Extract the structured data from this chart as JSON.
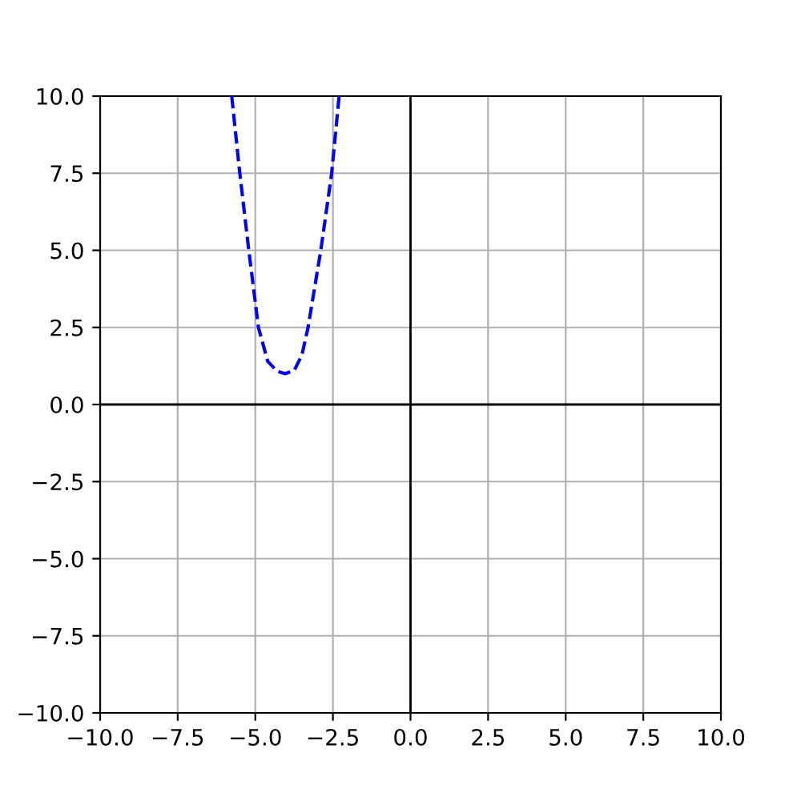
{
  "chart_data": {
    "type": "line",
    "series": [
      {
        "color": "#0000ff",
        "line_style": "dashed",
        "x": [
          -5.76,
          -5.5,
          -5.21,
          -4.9,
          -4.6,
          -4.3,
          -4.04,
          -3.75,
          -3.5,
          -3.3,
          -2.89,
          -2.54,
          -2.3
        ],
        "values": [
          10,
          7.5,
          5,
          2.5,
          1.4,
          1.08,
          1.0,
          1.1,
          1.6,
          2.5,
          5,
          7.5,
          10
        ]
      },
      {
        "color": "#000000",
        "x": [
          0,
          0
        ],
        "values": [
          -10,
          10
        ]
      },
      {
        "color": "#000000",
        "x": [
          -10,
          10
        ],
        "values": [
          0,
          0
        ]
      }
    ],
    "xlim": [
      -10,
      10
    ],
    "ylim": [
      -10,
      10
    ],
    "xticks": [
      {
        "value": -10,
        "label": "−10.0"
      },
      {
        "value": -7.5,
        "label": "−7.5"
      },
      {
        "value": -5,
        "label": "−5.0"
      },
      {
        "value": -2.5,
        "label": "−2.5"
      },
      {
        "value": 0,
        "label": "0.0"
      },
      {
        "value": 2.5,
        "label": "2.5"
      },
      {
        "value": 5,
        "label": "5.0"
      },
      {
        "value": 7.5,
        "label": "7.5"
      },
      {
        "value": 10,
        "label": "10.0"
      }
    ],
    "yticks": [
      {
        "value": -10,
        "label": "−10.0"
      },
      {
        "value": -7.5,
        "label": "−7.5"
      },
      {
        "value": -5,
        "label": "−5.0"
      },
      {
        "value": -2.5,
        "label": "−2.5"
      },
      {
        "value": 0,
        "label": "0.0"
      },
      {
        "value": 2.5,
        "label": "2.5"
      },
      {
        "value": 5,
        "label": "5.0"
      },
      {
        "value": 7.5,
        "label": "7.5"
      },
      {
        "value": 10,
        "label": "10.0"
      }
    ],
    "grid": true,
    "legend": false
  }
}
